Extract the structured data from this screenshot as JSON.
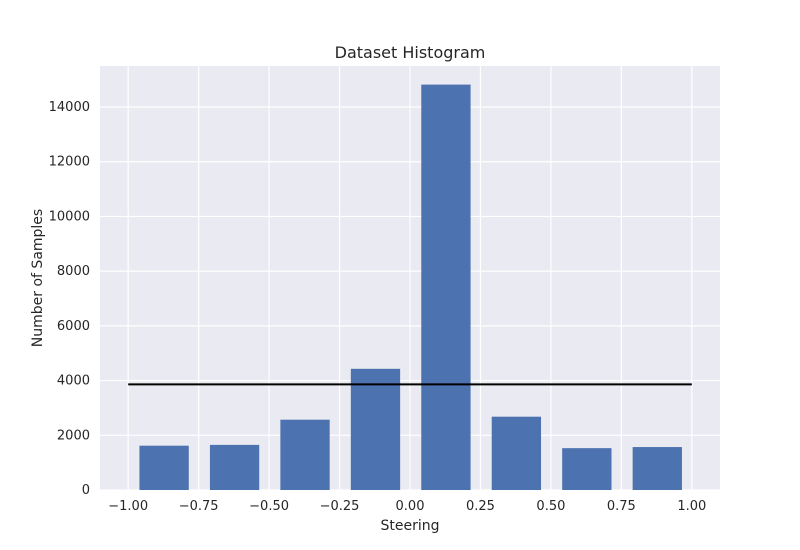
{
  "chart_data": {
    "type": "bar",
    "title": "Dataset Histogram",
    "xlabel": "Steering",
    "ylabel": "Number of Samples",
    "xlim": [
      -1.1,
      1.1
    ],
    "ylim": [
      0,
      15500
    ],
    "x_ticks": [
      -1.0,
      -0.75,
      -0.5,
      -0.25,
      0.0,
      0.25,
      0.5,
      0.75,
      1.0
    ],
    "x_tick_labels": [
      "−1.00",
      "−0.75",
      "−0.50",
      "−0.25",
      "0.00",
      "0.25",
      "0.50",
      "0.75",
      "1.00"
    ],
    "y_ticks": [
      0,
      2000,
      4000,
      6000,
      8000,
      10000,
      12000,
      14000
    ],
    "y_tick_labels": [
      "0",
      "2000",
      "4000",
      "6000",
      "8000",
      "10000",
      "12000",
      "14000"
    ],
    "bars": [
      {
        "x_start": -0.96,
        "x_end": -0.785,
        "value": 1620
      },
      {
        "x_start": -0.71,
        "x_end": -0.535,
        "value": 1650
      },
      {
        "x_start": -0.46,
        "x_end": -0.285,
        "value": 2570
      },
      {
        "x_start": -0.21,
        "x_end": -0.035,
        "value": 4430
      },
      {
        "x_start": 0.04,
        "x_end": 0.215,
        "value": 14820
      },
      {
        "x_start": 0.29,
        "x_end": 0.465,
        "value": 2680
      },
      {
        "x_start": 0.54,
        "x_end": 0.715,
        "value": 1530
      },
      {
        "x_start": 0.79,
        "x_end": 0.965,
        "value": 1570
      }
    ],
    "reference_line": {
      "x": [
        -1.0,
        1.0
      ],
      "y": 3860
    },
    "grid": true,
    "colors": {
      "background": "#eaeaf2",
      "grid": "#ffffff",
      "bar": "#4c72b0",
      "reference_line": "#000000",
      "text": "#262626"
    }
  }
}
